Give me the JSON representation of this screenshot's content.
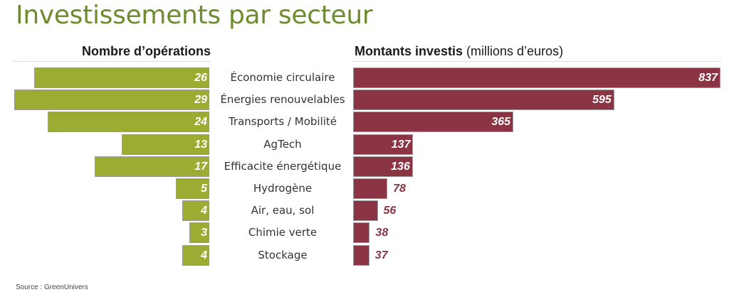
{
  "title": "Investissements par secteur",
  "source": "Source : GreenUnivers",
  "colors": {
    "title": "#6e8b2e",
    "left_bar": "#9cab32",
    "right_bar": "#8a3444"
  },
  "left_panel": {
    "heading": "Nombre d’opérations"
  },
  "right_panel": {
    "heading": "Montants investis",
    "unit": "(millions d’euros)"
  },
  "chart_data": [
    {
      "type": "bar",
      "orientation": "horizontal",
      "direction": "right-to-left",
      "title": "Nombre d’opérations",
      "categories": [
        "Économie circulaire",
        "Énergies renouvelables",
        "Transports / Mobilité",
        "AgTech",
        "Efficacite énergétique",
        "Hydrogène",
        "Air, eau, sol",
        "Chimie verte",
        "Stockage"
      ],
      "values": [
        26,
        29,
        24,
        13,
        17,
        5,
        4,
        3,
        4
      ],
      "xlim": [
        0,
        29
      ],
      "grid": false
    },
    {
      "type": "bar",
      "orientation": "horizontal",
      "direction": "left-to-right",
      "title": "Montants investis (millions d’euros)",
      "categories": [
        "Économie circulaire",
        "Énergies renouvelables",
        "Transports / Mobilité",
        "AgTech",
        "Efficacite énergétique",
        "Hydrogène",
        "Air, eau, sol",
        "Chimie verte",
        "Stockage"
      ],
      "values": [
        837,
        595,
        365,
        137,
        136,
        78,
        56,
        38,
        37
      ],
      "xlim": [
        0,
        837
      ],
      "grid": false
    }
  ]
}
